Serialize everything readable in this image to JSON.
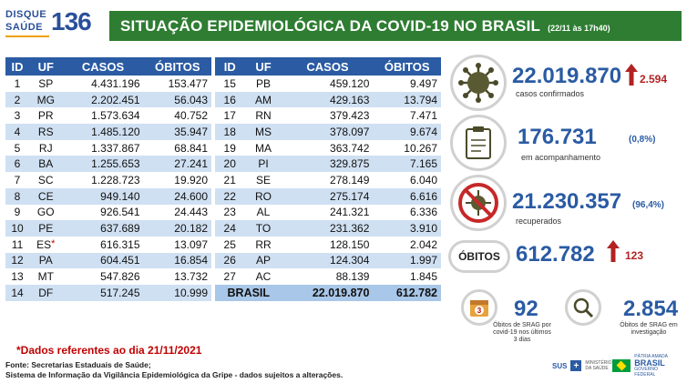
{
  "header": {
    "logo_line1": "DISQUE",
    "logo_line2": "SAÚDE",
    "logo_number": "136",
    "title": "SITUAÇÃO EPIDEMIOLÓGICA DA COVID-19 NO BRASIL",
    "date": "(22/11 às 17h40)"
  },
  "table_headers": [
    "ID",
    "UF",
    "CASOS",
    "ÓBITOS"
  ],
  "left_rows": [
    [
      "1",
      "SP",
      "4.431.196",
      "153.477"
    ],
    [
      "2",
      "MG",
      "2.202.451",
      "56.043"
    ],
    [
      "3",
      "PR",
      "1.573.634",
      "40.752"
    ],
    [
      "4",
      "RS",
      "1.485.120",
      "35.947"
    ],
    [
      "5",
      "RJ",
      "1.337.867",
      "68.841"
    ],
    [
      "6",
      "BA",
      "1.255.653",
      "27.241"
    ],
    [
      "7",
      "SC",
      "1.228.723",
      "19.920"
    ],
    [
      "8",
      "CE",
      "949.140",
      "24.600"
    ],
    [
      "9",
      "GO",
      "926.541",
      "24.443"
    ],
    [
      "10",
      "PE",
      "637.689",
      "20.182"
    ],
    [
      "11",
      "ES",
      "616.315",
      "13.097"
    ],
    [
      "12",
      "PA",
      "604.451",
      "16.854"
    ],
    [
      "13",
      "MT",
      "547.826",
      "13.732"
    ],
    [
      "14",
      "DF",
      "517.245",
      "10.999"
    ]
  ],
  "es_marker": "*",
  "right_rows": [
    [
      "15",
      "PB",
      "459.120",
      "9.497"
    ],
    [
      "16",
      "AM",
      "429.163",
      "13.794"
    ],
    [
      "17",
      "RN",
      "379.423",
      "7.471"
    ],
    [
      "18",
      "MS",
      "378.097",
      "9.674"
    ],
    [
      "19",
      "MA",
      "363.742",
      "10.267"
    ],
    [
      "20",
      "PI",
      "329.875",
      "7.165"
    ],
    [
      "21",
      "SE",
      "278.149",
      "6.040"
    ],
    [
      "22",
      "RO",
      "275.174",
      "6.616"
    ],
    [
      "23",
      "AL",
      "241.321",
      "6.336"
    ],
    [
      "24",
      "TO",
      "231.362",
      "3.910"
    ],
    [
      "25",
      "RR",
      "128.150",
      "2.042"
    ],
    [
      "26",
      "AP",
      "124.304",
      "1.997"
    ],
    [
      "27",
      "AC",
      "88.139",
      "1.845"
    ]
  ],
  "total": {
    "label": "BRASIL",
    "casos": "22.019.870",
    "obitos": "612.782"
  },
  "stats": {
    "confirmed": {
      "value": "22.019.870",
      "delta": "2.594",
      "label": "casos confirmados"
    },
    "monitoring": {
      "value": "176.731",
      "pct": "(0,8%)",
      "label": "em acompanhamento"
    },
    "recovered": {
      "value": "21.230.357",
      "pct": "(96,4%)",
      "label": "recuperados"
    },
    "deaths": {
      "tag": "ÓBITOS",
      "value": "612.782",
      "delta": "123"
    },
    "srag_obitos": {
      "value": "92",
      "badge": "3",
      "label": "Óbitos de SRAG por covid-19 nos últimos 3 dias"
    },
    "srag_invest": {
      "value": "2.854",
      "label": "Óbitos de SRAG em investigação"
    }
  },
  "footnote": "*Dados referentes ao dia 21/11/2021",
  "source_line1": "Fonte: Secretarias Estaduais de Saúde;",
  "source_line2": "Sistema de Informação da Vigilância Epidemiológica da Gripe - dados sujeitos a alterações.",
  "footer_logos": {
    "sus": "SUS",
    "ministry": "MINISTÉRIO DA SAÚDE",
    "brasil_top": "PÁTRIA AMADA",
    "brasil": "BRASIL",
    "brasil_sub": "GOVERNO FEDERAL"
  },
  "colors": {
    "header_green": "#2e7d32",
    "table_blue": "#2a5ba3",
    "row_alt": "#cfe0f2",
    "accent_red": "#b22222"
  }
}
